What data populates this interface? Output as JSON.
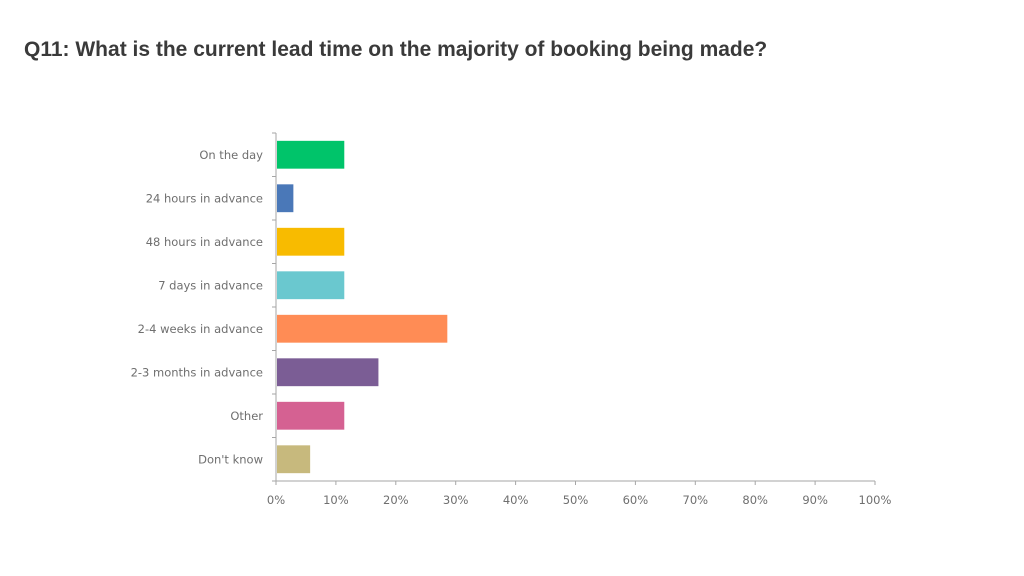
{
  "title": "Q11: What is the current lead time on the majority of booking being made?",
  "chart_data": {
    "type": "bar",
    "orientation": "horizontal",
    "title": "",
    "xlabel": "",
    "ylabel": "",
    "xlim": [
      0,
      100
    ],
    "grid": false,
    "legend": "none",
    "ticks": [
      "0%",
      "10%",
      "20%",
      "30%",
      "40%",
      "50%",
      "60%",
      "70%",
      "80%",
      "90%",
      "100%"
    ],
    "categories": [
      "On the day",
      "24 hours in advance",
      "48 hours in advance",
      "7 days in advance",
      "2-4 weeks in advance",
      "2-3 months in advance",
      "Other",
      "Don't know"
    ],
    "values": [
      11.4,
      2.9,
      11.4,
      11.4,
      28.6,
      17.1,
      11.4,
      5.7
    ],
    "colors": [
      "#00c46a",
      "#4a78b8",
      "#f8bb00",
      "#6ac8cf",
      "#ff8c55",
      "#7b5d95",
      "#d56192",
      "#c7b97d"
    ]
  }
}
